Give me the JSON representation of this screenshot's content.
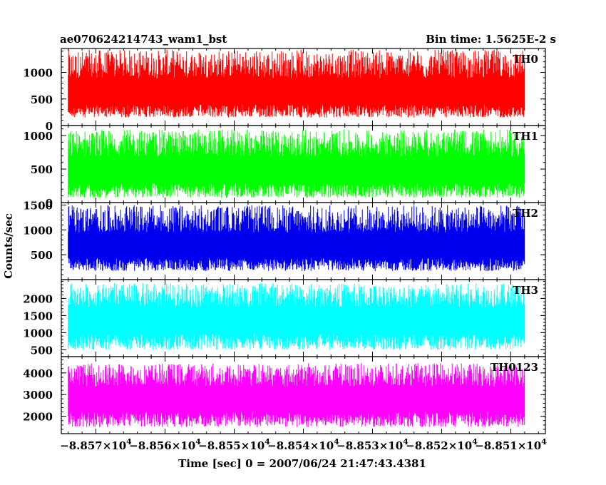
{
  "header": {
    "left_title": "ae070624214743_wam1_bst",
    "right_title": "Bin time: 1.5625E-2 s"
  },
  "axes": {
    "ylabel": "Counts/sec",
    "xlabel": "Time [sec] 0 = 2007/06/24 21:47:43.4381"
  },
  "chart_data": {
    "type": "line",
    "x_range": [
      -88575,
      -88505
    ],
    "data_x_range": [
      -88574,
      -88508
    ],
    "x_ticks": [
      {
        "mantissa": "−8.857",
        "value": -88570
      },
      {
        "mantissa": "−8.856",
        "value": -88560
      },
      {
        "mantissa": "−8.855",
        "value": -88550
      },
      {
        "mantissa": "−8.854",
        "value": -88540
      },
      {
        "mantissa": "−8.853",
        "value": -88530
      },
      {
        "mantissa": "−8.852",
        "value": -88520
      },
      {
        "mantissa": "−8.851",
        "value": -88510
      }
    ],
    "x_tick_suffix": "×10",
    "x_tick_exponent": "4",
    "panels": [
      {
        "name": "TH0",
        "color": "#ff0000",
        "ylim": [
          0,
          1450
        ],
        "yticks": [
          0,
          500,
          1000
        ],
        "y_tick_labels": [
          "0",
          "500",
          "1000"
        ],
        "level": 600,
        "spread_low": 450,
        "spread_high": 830
      },
      {
        "name": "TH1",
        "color": "#00ff00",
        "ylim": [
          0,
          1150
        ],
        "yticks": [
          0,
          500,
          1000
        ],
        "y_tick_labels": [
          "0",
          "500",
          "1000"
        ],
        "level": 470,
        "spread_low": 400,
        "spread_high": 620
      },
      {
        "name": "TH2",
        "color": "#0000ee",
        "ylim": [
          0,
          1550
        ],
        "yticks": [
          500,
          1000,
          1500
        ],
        "y_tick_labels": [
          "500",
          "1000",
          "1500"
        ],
        "level": 650,
        "spread_low": 480,
        "spread_high": 850
      },
      {
        "name": "TH3",
        "color": "#00ffff",
        "ylim": [
          300,
          2550
        ],
        "yticks": [
          500,
          1000,
          1500,
          2000
        ],
        "y_tick_labels": [
          "500",
          "1000",
          "1500",
          "2000"
        ],
        "level": 1350,
        "spread_low": 850,
        "spread_high": 1100
      },
      {
        "name": "TH0123",
        "color": "#ff00ff",
        "ylim": [
          1200,
          4750
        ],
        "yticks": [
          2000,
          3000,
          4000
        ],
        "y_tick_labels": [
          "2000",
          "3000",
          "4000"
        ],
        "level": 2800,
        "spread_low": 1300,
        "spread_high": 1650
      }
    ]
  }
}
